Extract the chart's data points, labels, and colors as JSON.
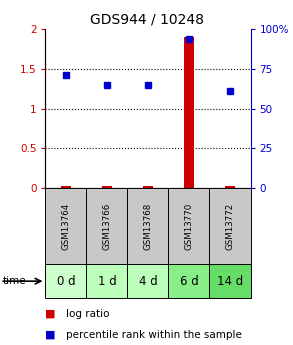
{
  "title": "GDS944 / 10248",
  "samples": [
    "GSM13764",
    "GSM13766",
    "GSM13768",
    "GSM13770",
    "GSM13772"
  ],
  "time_labels": [
    "0 d",
    "1 d",
    "4 d",
    "6 d",
    "14 d"
  ],
  "log_ratio": [
    0.02,
    0.03,
    0.02,
    1.9,
    0.03
  ],
  "percentile_rank": [
    1.42,
    1.3,
    1.3,
    1.88,
    1.22
  ],
  "ylim_left": [
    0,
    2
  ],
  "ylim_right": [
    0,
    100
  ],
  "yticks_left": [
    0,
    0.5,
    1.0,
    1.5,
    2.0
  ],
  "yticks_right": [
    0,
    25,
    50,
    75,
    100
  ],
  "ytick_labels_right": [
    "0",
    "25",
    "50",
    "75",
    "100%"
  ],
  "log_ratio_color": "#cc0000",
  "percentile_color": "#0000cc",
  "sample_bg_color": "#c8c8c8",
  "time_bg_colors": [
    "#ccffcc",
    "#bbffbb",
    "#bbffbb",
    "#88ee88",
    "#66dd66"
  ],
  "title_fontsize": 10,
  "tick_fontsize": 7.5,
  "sample_fontsize": 6.2,
  "time_label_fontsize": 8.5,
  "legend_fontsize": 7.5
}
